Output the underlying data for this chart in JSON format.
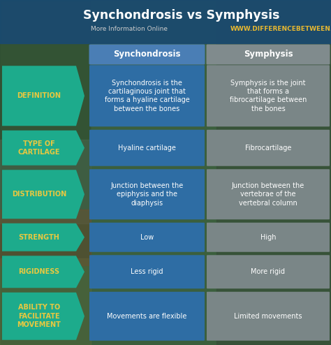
{
  "title": "Synchondrosis vs Symphysis",
  "subtitle": "More Information Online",
  "website": "WWW.DIFFERENCEBETWEEN.COM",
  "col1_header": "Synchondrosis",
  "col2_header": "Symphysis",
  "rows": [
    {
      "label": "DEFINITION",
      "col1": "Synchondrosis is the\ncartilaginous joint that\nforms a hyaline cartilage\nbetween the bones",
      "col2": "Symphysis is the joint\nthat forms a\nfibrocartilage between\nthe bones"
    },
    {
      "label": "TYPE OF\nCARTILAGE",
      "col1": "Hyaline cartilage",
      "col2": "Fibrocartilage"
    },
    {
      "label": "DISTRIBUTION",
      "col1": "Junction between the\nepiphysis and the\ndiaphysis",
      "col2": "Junction between the\nvertebrae of the\nvertebral column"
    },
    {
      "label": "STRENGTH",
      "col1": "Low",
      "col2": "High"
    },
    {
      "label": "RIGIDNESS",
      "col1": "Less rigid",
      "col2": "More rigid"
    },
    {
      "label": "ABILITY TO\nFACILITATE\nMOVEMENT",
      "col1": "Movements are flexible",
      "col2": "Limited movements"
    }
  ],
  "title_color": "#ffffff",
  "subtitle_color": "#cccccc",
  "website_color": "#e8b830",
  "header_text_color": "#ffffff",
  "label_text_color": "#e8c840",
  "col1_text_color": "#ffffff",
  "col2_text_color": "#ffffff",
  "title_bg": "#1a4a70",
  "header_bg_col1": "#4a7eb5",
  "header_bg_col2": "#808b8d",
  "label_bg": "#1dab8c",
  "col1_bg": "#2e6da4",
  "col2_bg": "#7a8687",
  "bg_forest": "#3a5e45",
  "bg_dark": "#2a3a2a"
}
